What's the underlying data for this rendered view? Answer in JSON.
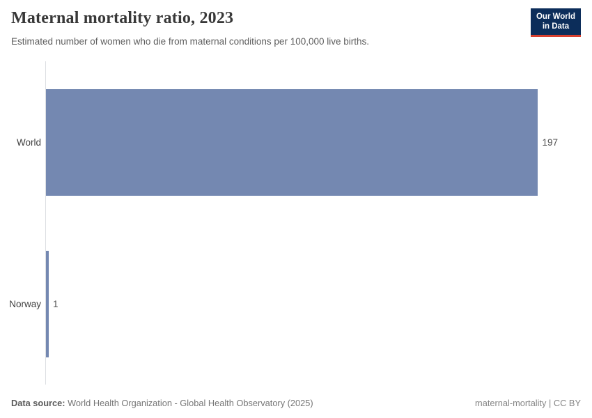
{
  "header": {
    "title": "Maternal mortality ratio, 2023",
    "subtitle": "Estimated number of women who die from maternal conditions per 100,000 live births.",
    "logo": {
      "line1": "Our World",
      "line2": "in Data"
    }
  },
  "chart_data": {
    "type": "bar",
    "orientation": "horizontal",
    "title": "Maternal mortality ratio, 2023",
    "categories": [
      "World",
      "Norway"
    ],
    "values": [
      197,
      1
    ],
    "value_labels": [
      "197",
      "1"
    ],
    "xlabel": "",
    "ylabel": "",
    "xlim": [
      0,
      197
    ],
    "grid": false,
    "legend": "none",
    "bar_color": "#7488b1"
  },
  "footer": {
    "data_source_label": "Data source:",
    "data_source_value": " World Health Organization - Global Health Observatory (2025)",
    "license": "maternal-mortality | CC BY"
  },
  "colors": {
    "bar": "#7488b1",
    "logo_background": "#0c2d5a",
    "logo_accent": "#d8402f",
    "axis_line": "#dcdee2",
    "title_text": "#383838",
    "subtitle_text": "#5e5e5e"
  }
}
